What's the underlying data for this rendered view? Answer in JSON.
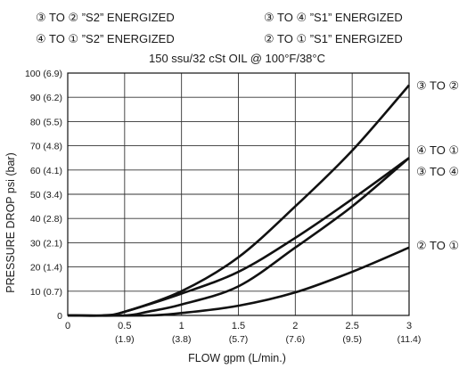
{
  "header": {
    "legend_rows": [
      [
        "③ TO ②  ”S2” ENERGIZED",
        "③ TO ④  ”S1” ENERGIZED"
      ],
      [
        "④ TO ①  ”S2” ENERGIZED",
        "② TO ①  ”S1” ENERGIZED"
      ]
    ]
  },
  "chart_data": {
    "type": "line",
    "title": "150 ssu/32 cSt OIL @ 100°F/38°C",
    "xlabel": "FLOW gpm (L/min.)",
    "ylabel": "PRESSURE DROP psi (bar)",
    "xlim": [
      0,
      3
    ],
    "ylim": [
      0,
      100
    ],
    "grid": true,
    "x_ticks": [
      {
        "value": 0,
        "label": "0",
        "sub": ""
      },
      {
        "value": 0.5,
        "label": "0.5",
        "sub": "(1.9)"
      },
      {
        "value": 1,
        "label": "1",
        "sub": "(3.8)"
      },
      {
        "value": 1.5,
        "label": "1.5",
        "sub": "(5.7)"
      },
      {
        "value": 2,
        "label": "2",
        "sub": "(7.6)"
      },
      {
        "value": 2.5,
        "label": "2.5",
        "sub": "(9.5)"
      },
      {
        "value": 3,
        "label": "3",
        "sub": "(11.4)"
      }
    ],
    "y_ticks": [
      {
        "value": 0,
        "label": "0"
      },
      {
        "value": 10,
        "label": "10 (0.7)"
      },
      {
        "value": 20,
        "label": "20 (1.4)"
      },
      {
        "value": 30,
        "label": "30 (2.1)"
      },
      {
        "value": 40,
        "label": "40 (2.8)"
      },
      {
        "value": 50,
        "label": "50 (3.4)"
      },
      {
        "value": 60,
        "label": "60 (4.1)"
      },
      {
        "value": 70,
        "label": "70 (4.8)"
      },
      {
        "value": 80,
        "label": "80 (5.5)"
      },
      {
        "value": 90,
        "label": "90 (6.2)"
      },
      {
        "value": 100,
        "label": "100 (6.9)"
      }
    ],
    "series": [
      {
        "name": "③ TO ②",
        "x": [
          0,
          0.3,
          0.5,
          1,
          1.5,
          2,
          2.5,
          3
        ],
        "y": [
          0,
          0,
          1.5,
          10,
          24,
          45,
          68,
          95
        ]
      },
      {
        "name": "④ TO ①",
        "x": [
          0,
          0.35,
          0.5,
          1,
          1.5,
          2,
          2.5,
          3
        ],
        "y": [
          0,
          0,
          1.5,
          9,
          18,
          32,
          48,
          65
        ]
      },
      {
        "name": "③ TO ④",
        "x": [
          0,
          0.5,
          0.7,
          1,
          1.5,
          2,
          2.5,
          3
        ],
        "y": [
          0,
          0,
          1.5,
          4.5,
          12,
          28,
          45,
          65
        ]
      },
      {
        "name": "② TO ①",
        "x": [
          0,
          0.7,
          1,
          1.5,
          2,
          2.5,
          3
        ],
        "y": [
          0,
          0,
          1,
          4,
          9.5,
          18,
          28
        ]
      }
    ]
  }
}
